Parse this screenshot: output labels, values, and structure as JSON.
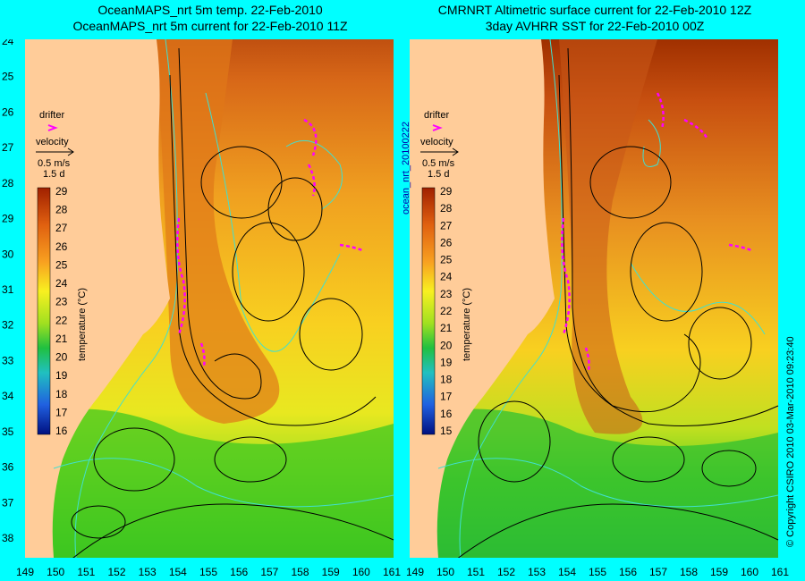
{
  "left_panel": {
    "title_line1": "OceanMAPS_nrt 5m temp. 22-Feb-2010",
    "title_line2": "OceanMAPS_nrt 5m current for 22-Feb-2010 11Z",
    "colorbar_ticks": [
      "29",
      "28",
      "27",
      "26",
      "25",
      "24",
      "23",
      "22",
      "21",
      "20",
      "19",
      "18",
      "17",
      "16"
    ],
    "colorbar_label": "temperature (°C)"
  },
  "right_panel": {
    "title_line1": "CMRNRT Altimetric surface current for 22-Feb-2010 12Z",
    "title_line2": "3day AVHRR SST for 22-Feb-2010 00Z",
    "colorbar_ticks": [
      "29",
      "28",
      "27",
      "26",
      "25",
      "24",
      "23",
      "22",
      "21",
      "20",
      "19",
      "18",
      "17",
      "16",
      "15"
    ],
    "colorbar_label": "temperature (°C)"
  },
  "legend": {
    "drifter_label": "drifter",
    "velocity_label": "velocity",
    "speed_label": "0.5 m/s",
    "duration_label": "1.5 d"
  },
  "y_ticks": [
    "24",
    "25",
    "26",
    "27",
    "28",
    "29",
    "30",
    "31",
    "32",
    "33",
    "34",
    "35",
    "36",
    "37",
    "38"
  ],
  "x_ticks": [
    "149",
    "150",
    "151",
    "152",
    "153",
    "154",
    "155",
    "156",
    "157",
    "158",
    "159",
    "160",
    "161"
  ],
  "run_label": "ocean_nrt_20100222",
  "copyright": "© Copyright CSIRO 2010   03-Mar-2010 09:23:40",
  "colors": {
    "land": "#ffcc99",
    "frame": "#00ffff",
    "contour": "#40e0d0",
    "drifter": "#ff00ff",
    "warm": "#c04000",
    "cold": "#20a020"
  }
}
